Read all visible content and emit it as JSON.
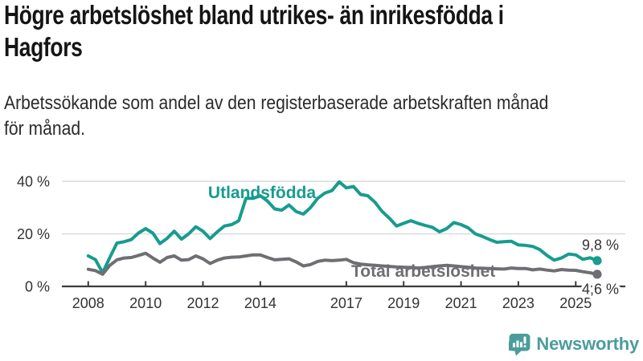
{
  "header": {
    "title": "Högre arbetslöshet bland utrikes- än inrikesfödda i\nHagfors",
    "subtitle": "Arbetssökande som andel av den registerbaserade arbetskraften månad\nför månad."
  },
  "footer": {
    "brand": "Newsworthy",
    "logo_icon": "bar-chart-speech-bubble-icon"
  },
  "colors": {
    "accent_teal": "#179c8f",
    "series_gray": "#6f6f73",
    "grid": "#dadada",
    "axis": "#3b3b3b",
    "tick_text": "#333333",
    "title_text": "#151515",
    "subtitle_text": "#2b2b2b",
    "logo_teal": "#4a9d9c",
    "background": "#ffffff"
  },
  "chart_data": {
    "type": "line",
    "title": "Högre arbetslöshet bland utrikes- än inrikesfödda i Hagfors",
    "subtitle": "Arbetssökande som andel av den registerbaserade arbetskraften månad för månad.",
    "xlabel": "",
    "ylabel": "",
    "grid": "horizontal",
    "xlim": [
      2007.08,
      2026.73
    ],
    "ylim": [
      0,
      42
    ],
    "yticks": [
      {
        "value": 0,
        "label": "0 %"
      },
      {
        "value": 20,
        "label": "20 %"
      },
      {
        "value": 40,
        "label": "40 %"
      }
    ],
    "xticks": [
      {
        "value": 2008,
        "label": "2008"
      },
      {
        "value": 2010,
        "label": "2010"
      },
      {
        "value": 2012,
        "label": "2012"
      },
      {
        "value": 2014,
        "label": "2014"
      },
      {
        "value": 2017,
        "label": "2017"
      },
      {
        "value": 2019,
        "label": "2019"
      },
      {
        "value": 2021,
        "label": "2021"
      },
      {
        "value": 2023,
        "label": "2023"
      },
      {
        "value": 2025,
        "label": "2025"
      }
    ],
    "x": [
      2008,
      2008.25,
      2008.5,
      2008.75,
      2009,
      2009.25,
      2009.5,
      2009.75,
      2010,
      2010.25,
      2010.5,
      2010.75,
      2011,
      2011.25,
      2011.5,
      2011.75,
      2012,
      2012.25,
      2012.5,
      2012.75,
      2013,
      2013.25,
      2013.5,
      2013.75,
      2014,
      2014.25,
      2014.5,
      2014.75,
      2015,
      2015.25,
      2015.5,
      2015.75,
      2016,
      2016.25,
      2016.5,
      2016.75,
      2017,
      2017.25,
      2017.5,
      2017.75,
      2018,
      2018.25,
      2018.5,
      2018.75,
      2019,
      2019.25,
      2019.5,
      2019.75,
      2020,
      2020.25,
      2020.5,
      2020.75,
      2021,
      2021.25,
      2021.5,
      2021.75,
      2022,
      2022.25,
      2022.5,
      2022.75,
      2023,
      2023.25,
      2023.5,
      2023.75,
      2024,
      2024.25,
      2024.5,
      2024.75,
      2025,
      2025.25,
      2025.5,
      2025.75
    ],
    "series": [
      {
        "id": "utlandsfodda",
        "name": "Utlandsfödda",
        "color_key": "accent_teal",
        "end_label": "9,8 %",
        "end_value": 9.8,
        "values": [
          11.6,
          10.2,
          5.2,
          11.0,
          16.5,
          17.0,
          17.8,
          20.3,
          22.0,
          20.3,
          16.3,
          18.3,
          21.0,
          18.0,
          20.0,
          22.7,
          21.0,
          18.2,
          20.8,
          23.0,
          23.5,
          25.0,
          33.5,
          33.5,
          34.5,
          32.5,
          29.5,
          29.0,
          31.0,
          28.5,
          27.5,
          30.0,
          33.5,
          35.5,
          36.5,
          39.8,
          37.5,
          38.0,
          35.0,
          34.5,
          32.0,
          28.5,
          26.0,
          23.0,
          24.0,
          25.0,
          24.0,
          23.2,
          22.5,
          20.8,
          22.0,
          24.3,
          23.5,
          22.3,
          20.0,
          19.0,
          17.8,
          16.8,
          17.0,
          17.2,
          15.8,
          15.6,
          15.2,
          14.0,
          11.8,
          10.0,
          10.8,
          12.3,
          12.0,
          10.3,
          10.9,
          9.8
        ]
      },
      {
        "id": "total-arbetsloshet",
        "name": "Total arbetslöshet",
        "color_key": "series_gray",
        "end_label": "4,6 %",
        "end_value": 4.6,
        "values": [
          6.5,
          6.0,
          4.6,
          8.0,
          10.1,
          10.8,
          11.0,
          11.8,
          12.6,
          10.8,
          9.2,
          11.0,
          11.6,
          10.0,
          10.2,
          11.6,
          10.5,
          8.7,
          10.0,
          10.8,
          11.1,
          11.2,
          11.6,
          12.0,
          12.0,
          11.0,
          10.1,
          10.3,
          10.5,
          9.3,
          7.8,
          8.3,
          9.5,
          10.0,
          9.8,
          10.0,
          10.3,
          9.0,
          8.5,
          8.2,
          8.0,
          7.8,
          7.6,
          7.4,
          7.3,
          7.2,
          7.0,
          7.2,
          7.5,
          7.8,
          8.0,
          7.8,
          7.5,
          7.3,
          7.0,
          6.9,
          6.8,
          6.7,
          6.6,
          7.0,
          6.8,
          6.8,
          6.3,
          6.6,
          6.2,
          5.9,
          6.4,
          6.2,
          6.1,
          5.6,
          5.2,
          4.6
        ]
      }
    ]
  }
}
